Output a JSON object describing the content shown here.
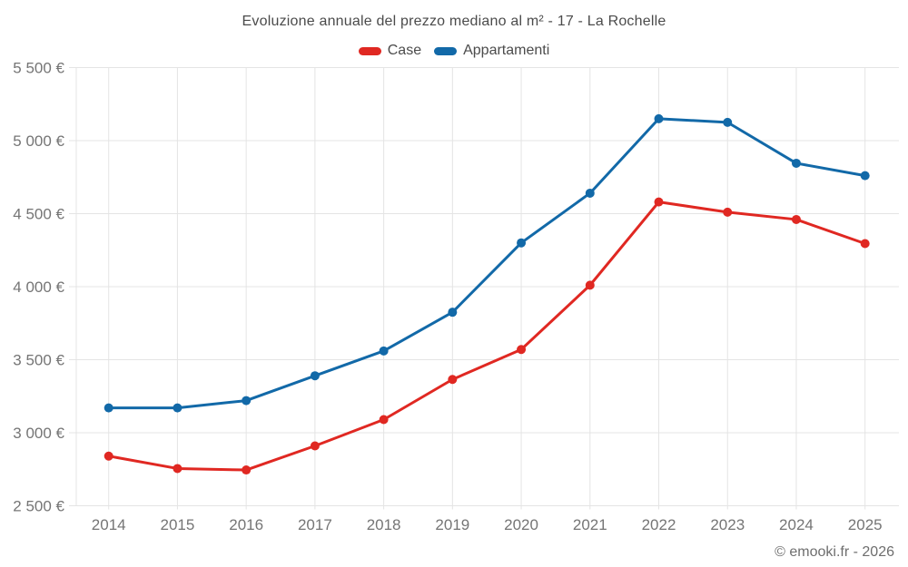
{
  "title": "Evoluzione annuale del prezzo mediano al m² - 17 - La Rochelle",
  "copyright": "© emooki.fr - 2026",
  "colors": {
    "case_red": "#e02822",
    "appartamenti_blue": "#1269a8",
    "grid": "#e4e4e4",
    "title_text": "#4b4b4b",
    "tick_text": "#757575"
  },
  "chart_data": {
    "type": "line",
    "title": "Evoluzione annuale del prezzo mediano al m² - 17 - La Rochelle",
    "categories": [
      "2014",
      "2015",
      "2016",
      "2017",
      "2018",
      "2019",
      "2020",
      "2021",
      "2022",
      "2023",
      "2024",
      "2025"
    ],
    "xlabel": "",
    "ylabel": "",
    "ylim": [
      2500,
      5500
    ],
    "ytick_step": 500,
    "ytick_labels": [
      "2 500 €",
      "3 000 €",
      "3 500 €",
      "4 000 €",
      "4 500 €",
      "5 000 €",
      "5 500 €"
    ],
    "grid": true,
    "legend_position": "top",
    "series": [
      {
        "name": "Case",
        "color": "#e02822",
        "values": [
          2840,
          2755,
          2745,
          2910,
          3090,
          3365,
          3570,
          4010,
          4580,
          4510,
          4460,
          4295
        ]
      },
      {
        "name": "Appartamenti",
        "color": "#1269a8",
        "values": [
          3170,
          3170,
          3220,
          3390,
          3560,
          3825,
          4300,
          4640,
          5150,
          5125,
          4845,
          4760
        ]
      }
    ]
  }
}
